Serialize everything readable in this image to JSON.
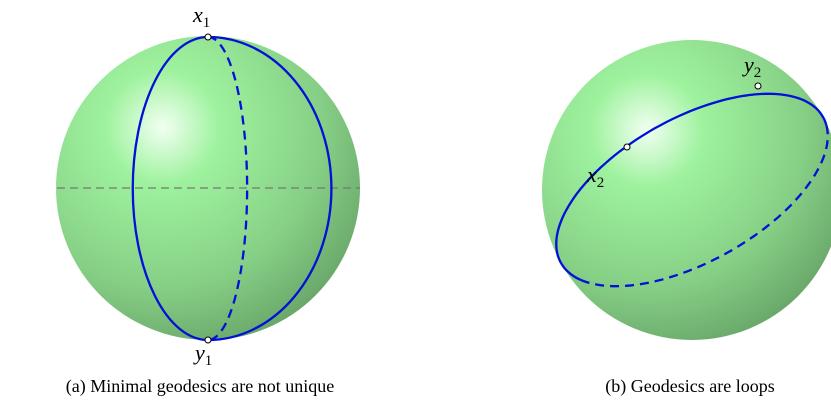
{
  "panels": [
    {
      "points": [
        {
          "base": "x",
          "sub": "1"
        },
        {
          "base": "y",
          "sub": "1"
        }
      ],
      "caption": "(a) Minimal geodesics are not unique"
    },
    {
      "points": [
        {
          "base": "x",
          "sub": "2"
        },
        {
          "base": "y",
          "sub": "2"
        }
      ],
      "caption": "(b) Geodesics are loops"
    }
  ]
}
